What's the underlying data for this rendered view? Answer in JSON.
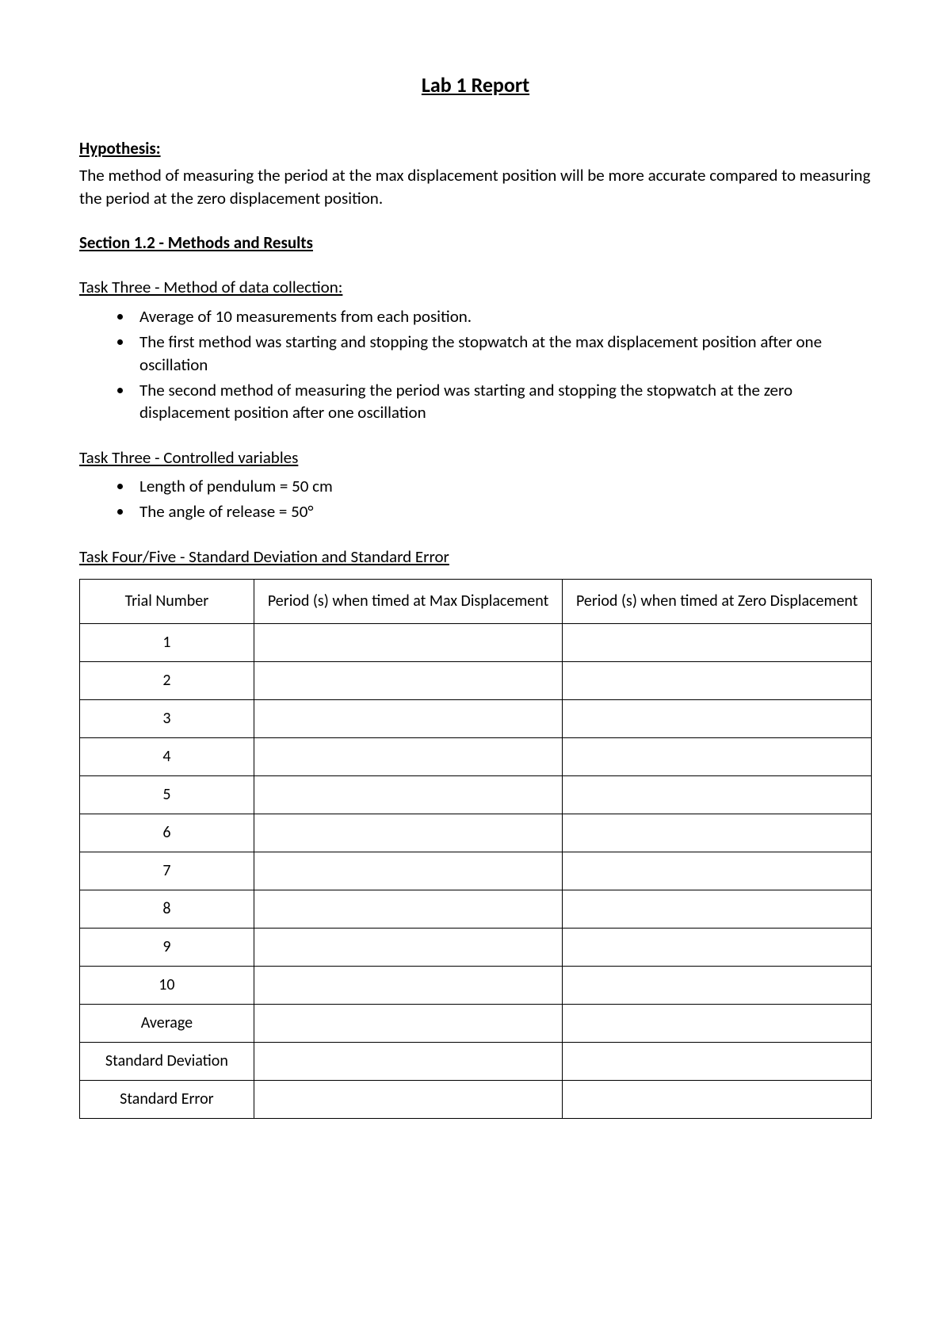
{
  "title": "Lab 1 Report",
  "hypothesis": {
    "heading": "Hypothesis:",
    "text": "The method of measuring the period at the max displacement position will be more accurate compared to measuring the period at the zero displacement position."
  },
  "section12": {
    "heading": "Section 1.2 - Methods and Results"
  },
  "task3_method": {
    "heading": "Task Three - Method of data collection:",
    "bullets": [
      "Average of 10 measurements from each position.",
      "The first method was starting and stopping the stopwatch at the max displacement position after one oscillation",
      "The second method of measuring the period was starting and stopping the stopwatch at the zero displacement position after one oscillation"
    ]
  },
  "task3_controlled": {
    "heading": "Task Three - Controlled variables",
    "bullets": [
      "Length of pendulum = 50 cm",
      "The angle of release = 50°"
    ]
  },
  "task45": {
    "heading": "Task Four/Five - Standard Deviation and Standard Error"
  },
  "table": {
    "columns": [
      "Trial Number",
      "Period (s) when timed at Max Displacement",
      "Period (s) when timed at Zero Displacement"
    ],
    "col_widths_pct": [
      22,
      39,
      39
    ],
    "header_fontsize": 20,
    "cell_fontsize": 20,
    "border_color": "#000000",
    "rows": [
      {
        "label": "1",
        "bold": false,
        "max": "",
        "zero": ""
      },
      {
        "label": "2",
        "bold": false,
        "max": "",
        "zero": ""
      },
      {
        "label": "3",
        "bold": false,
        "max": "",
        "zero": ""
      },
      {
        "label": "4",
        "bold": false,
        "max": "",
        "zero": ""
      },
      {
        "label": "5",
        "bold": false,
        "max": "",
        "zero": ""
      },
      {
        "label": "6",
        "bold": false,
        "max": "",
        "zero": ""
      },
      {
        "label": "7",
        "bold": false,
        "max": "",
        "zero": ""
      },
      {
        "label": "8",
        "bold": false,
        "max": "",
        "zero": ""
      },
      {
        "label": "9",
        "bold": false,
        "max": "",
        "zero": ""
      },
      {
        "label": "10",
        "bold": false,
        "max": "",
        "zero": ""
      },
      {
        "label": "Average",
        "bold": true,
        "max": "",
        "zero": ""
      },
      {
        "label": "Standard Deviation",
        "bold": true,
        "max": "",
        "zero": ""
      },
      {
        "label": "Standard Error",
        "bold": true,
        "max": "",
        "zero": ""
      }
    ]
  },
  "style": {
    "page_bg": "#ffffff",
    "text_color": "#000000",
    "font_family": "Calibri",
    "title_fontsize": 26,
    "body_fontsize": 21
  }
}
